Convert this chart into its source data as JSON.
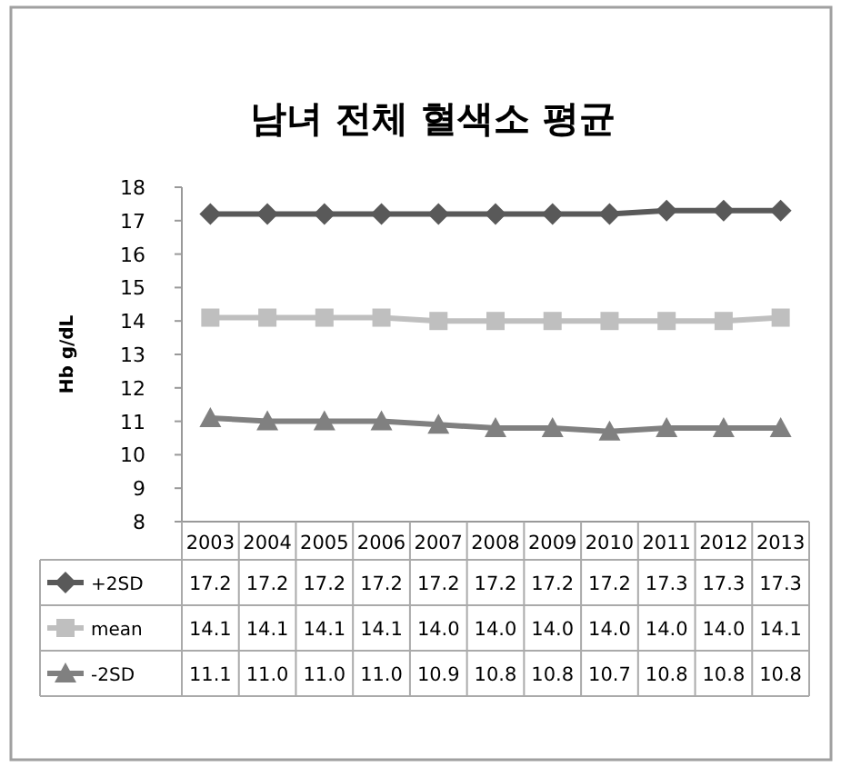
{
  "chart_data": {
    "type": "line",
    "title": "남녀 전체 혈색소 평균",
    "ylabel": "Hb g/dL",
    "categories": [
      "2003",
      "2004",
      "2005",
      "2006",
      "2007",
      "2008",
      "2009",
      "2010",
      "2011",
      "2012",
      "2013"
    ],
    "series": [
      {
        "name": "+2SD",
        "color": "#595959",
        "marker": "diamond",
        "values": [
          17.2,
          17.2,
          17.2,
          17.2,
          17.2,
          17.2,
          17.2,
          17.2,
          17.3,
          17.3,
          17.3
        ],
        "value_labels": [
          "17.2",
          "17.2",
          "17.2",
          "17.2",
          "17.2",
          "17.2",
          "17.2",
          "17.2",
          "17.3",
          "17.3",
          "17.3"
        ]
      },
      {
        "name": "mean",
        "color": "#bfbfbf",
        "marker": "square",
        "values": [
          14.1,
          14.1,
          14.1,
          14.1,
          14.0,
          14.0,
          14.0,
          14.0,
          14.0,
          14.0,
          14.1
        ],
        "value_labels": [
          "14.1",
          "14.1",
          "14.1",
          "14.1",
          "14.0",
          "14.0",
          "14.0",
          "14.0",
          "14.0",
          "14.0",
          "14.1"
        ]
      },
      {
        "name": "-2SD",
        "color": "#808080",
        "marker": "triangle",
        "values": [
          11.1,
          11.0,
          11.0,
          11.0,
          10.9,
          10.8,
          10.8,
          10.7,
          10.8,
          10.8,
          10.8
        ],
        "value_labels": [
          "11.1",
          "11.0",
          "11.0",
          "11.0",
          "10.9",
          "10.8",
          "10.8",
          "10.7",
          "10.8",
          "10.8",
          "10.8"
        ]
      }
    ],
    "ylim": [
      8,
      18
    ],
    "yticks": [
      8,
      9,
      10,
      11,
      12,
      13,
      14,
      15,
      16,
      17,
      18
    ],
    "grid": false,
    "legend": "bottom"
  }
}
